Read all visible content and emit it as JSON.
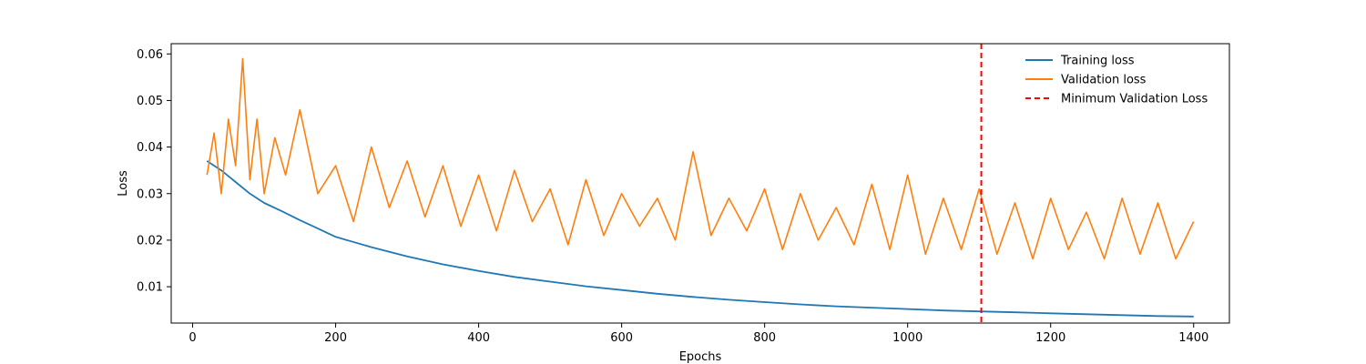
{
  "chart_data": {
    "type": "line",
    "xlabel": "Epochs",
    "ylabel": "Loss",
    "xlim": [
      -30,
      1450
    ],
    "ylim": [
      0.0022,
      0.0622
    ],
    "xticks": [
      0,
      200,
      400,
      600,
      800,
      1000,
      1200,
      1400
    ],
    "yticks": [
      0.01,
      0.02,
      0.03,
      0.04,
      0.05,
      0.06
    ],
    "ytick_labels": [
      "0.01",
      "0.02",
      "0.03",
      "0.04",
      "0.05",
      "0.06"
    ],
    "grid": false,
    "legend_position": "upper right",
    "series": [
      {
        "name": "Training loss",
        "color": "#1f77b4",
        "style": "solid",
        "x": [
          20,
          40,
          60,
          80,
          100,
          125,
          150,
          175,
          200,
          250,
          300,
          350,
          400,
          450,
          500,
          550,
          600,
          650,
          700,
          750,
          800,
          850,
          900,
          950,
          1000,
          1050,
          1100,
          1150,
          1200,
          1250,
          1300,
          1350,
          1400
        ],
        "y": [
          0.037,
          0.035,
          0.0325,
          0.03,
          0.028,
          0.0262,
          0.0243,
          0.0225,
          0.0207,
          0.0185,
          0.0165,
          0.0148,
          0.0134,
          0.0121,
          0.0111,
          0.0101,
          0.0093,
          0.0085,
          0.0078,
          0.0072,
          0.0067,
          0.0062,
          0.0058,
          0.0055,
          0.0052,
          0.0049,
          0.0047,
          0.0045,
          0.0043,
          0.0041,
          0.0039,
          0.0037,
          0.0036
        ]
      },
      {
        "name": "Validation loss",
        "color": "#ff7f0e",
        "style": "solid",
        "x": [
          20,
          30,
          40,
          50,
          60,
          70,
          80,
          90,
          100,
          115,
          130,
          150,
          175,
          200,
          225,
          250,
          275,
          300,
          325,
          350,
          375,
          400,
          425,
          450,
          475,
          500,
          525,
          550,
          575,
          600,
          625,
          650,
          675,
          700,
          725,
          750,
          775,
          800,
          825,
          850,
          875,
          900,
          925,
          950,
          975,
          1000,
          1025,
          1050,
          1075,
          1100,
          1125,
          1150,
          1175,
          1200,
          1225,
          1250,
          1275,
          1300,
          1325,
          1350,
          1375,
          1400
        ],
        "y": [
          0.034,
          0.043,
          0.03,
          0.046,
          0.036,
          0.059,
          0.033,
          0.046,
          0.03,
          0.042,
          0.034,
          0.048,
          0.03,
          0.036,
          0.024,
          0.04,
          0.027,
          0.037,
          0.025,
          0.036,
          0.023,
          0.034,
          0.022,
          0.035,
          0.024,
          0.031,
          0.019,
          0.033,
          0.021,
          0.03,
          0.023,
          0.029,
          0.02,
          0.039,
          0.021,
          0.029,
          0.022,
          0.031,
          0.018,
          0.03,
          0.02,
          0.027,
          0.019,
          0.032,
          0.018,
          0.034,
          0.017,
          0.029,
          0.018,
          0.031,
          0.017,
          0.028,
          0.016,
          0.029,
          0.018,
          0.026,
          0.016,
          0.029,
          0.017,
          0.028,
          0.016,
          0.024
        ]
      },
      {
        "name": "Minimum Validation Loss",
        "color": "#ff0000",
        "style": "dashed",
        "x_value": 1103
      }
    ]
  }
}
